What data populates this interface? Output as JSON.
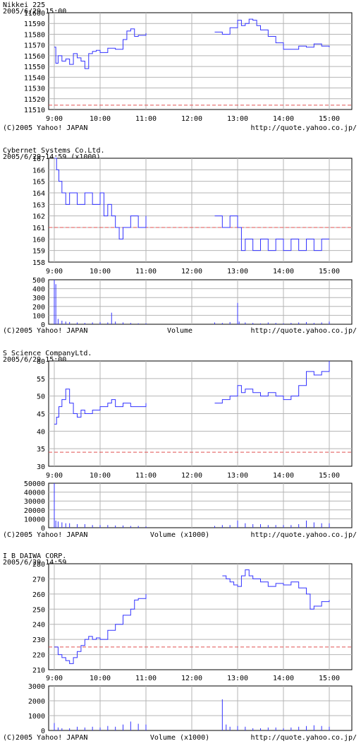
{
  "credit_text": "(C)2005 Yahoo! JAPAN",
  "credit_url": "http://quote.yahoo.co.jp/",
  "chart_data": [
    {
      "type": "line",
      "title": "Nikkei 225",
      "subtitle": "2005/6/29 15:00",
      "x_ticks": [
        "9:00",
        "10:00",
        "11:00",
        "12:00",
        "13:00",
        "14:00",
        "15:00"
      ],
      "y_ticks": [
        "11510",
        "11520",
        "11530",
        "11540",
        "11550",
        "11560",
        "11570",
        "11580",
        "11590",
        "11600"
      ],
      "ylim": [
        11510,
        11600
      ],
      "reference_line": 11514,
      "grid": true,
      "series": [
        {
          "values_x": [
            "9:00",
            "9:02",
            "9:05",
            "9:10",
            "9:15",
            "9:20",
            "9:25",
            "9:30",
            "9:35",
            "9:40",
            "9:45",
            "9:50",
            "9:55",
            "10:00",
            "10:10",
            "10:20",
            "10:30",
            "10:35",
            "10:40",
            "10:45",
            "10:50",
            "11:00"
          ],
          "values": [
            11568,
            11553,
            11560,
            11555,
            11557,
            11552,
            11562,
            11558,
            11555,
            11548,
            11562,
            11564,
            11565,
            11563,
            11567,
            11566,
            11575,
            11583,
            11585,
            11578,
            11579,
            11581
          ],
          "session2_x": [
            "12:30",
            "12:40",
            "12:50",
            "13:00",
            "13:05",
            "13:10",
            "13:15",
            "13:20",
            "13:25",
            "13:30",
            "13:40",
            "13:50",
            "14:00",
            "14:10",
            "14:20",
            "14:30",
            "14:40",
            "14:50",
            "15:00"
          ],
          "session2_values": [
            11582,
            11580,
            11586,
            11593,
            11588,
            11590,
            11594,
            11593,
            11588,
            11584,
            11578,
            11572,
            11566,
            11566,
            11569,
            11568,
            11571,
            11569,
            11568
          ]
        }
      ]
    },
    {
      "type": "line",
      "title": "Cybernet  Systems  Co.Ltd.",
      "subtitle": "2005/6/29 14:59  (x1000)",
      "x_ticks": [
        "9:00",
        "10:00",
        "11:00",
        "12:00",
        "13:00",
        "14:00",
        "15:00"
      ],
      "y_ticks": [
        "158",
        "159",
        "160",
        "161",
        "162",
        "163",
        "164",
        "165",
        "166",
        "167"
      ],
      "ylim": [
        158,
        167
      ],
      "reference_line": 161,
      "grid": true,
      "series": [
        {
          "values_x": [
            "9:00",
            "9:03",
            "9:06",
            "9:10",
            "9:15",
            "9:20",
            "9:30",
            "9:40",
            "9:50",
            "10:00",
            "10:05",
            "10:10",
            "10:15",
            "10:20",
            "10:25",
            "10:30",
            "10:40",
            "10:50",
            "11:00"
          ],
          "values": [
            167,
            166,
            165,
            164,
            163,
            164,
            163,
            164,
            163,
            164,
            162,
            163,
            162,
            161,
            160,
            161,
            162,
            161,
            162
          ],
          "session2_x": [
            "12:30",
            "12:40",
            "12:50",
            "13:00",
            "13:05",
            "13:10",
            "13:20",
            "13:30",
            "13:40",
            "13:50",
            "14:00",
            "14:10",
            "14:20",
            "14:30",
            "14:40",
            "14:50",
            "15:00"
          ],
          "session2_values": [
            162,
            161,
            162,
            161,
            159,
            160,
            159,
            160,
            159,
            160,
            159,
            160,
            159,
            160,
            159,
            160,
            160
          ]
        }
      ],
      "volume": {
        "label": "Volume",
        "y_ticks": [
          "0",
          "100",
          "200",
          "300",
          "400",
          "500"
        ],
        "ylim": [
          0,
          500
        ],
        "values_x": [
          "9:00",
          "9:02",
          "9:05",
          "9:10",
          "9:15",
          "9:20",
          "9:30",
          "9:40",
          "9:50",
          "10:00",
          "10:10",
          "10:15",
          "10:20",
          "10:30",
          "10:40",
          "10:50",
          "11:00",
          "12:30",
          "12:40",
          "12:50",
          "13:00",
          "13:02",
          "13:10",
          "13:20",
          "13:30",
          "13:40",
          "13:50",
          "14:00",
          "14:10",
          "14:20",
          "14:30",
          "14:40",
          "14:50",
          "15:00"
        ],
        "values": [
          500,
          450,
          60,
          40,
          30,
          25,
          20,
          15,
          20,
          25,
          20,
          130,
          30,
          20,
          15,
          10,
          10,
          20,
          15,
          25,
          240,
          30,
          20,
          15,
          10,
          20,
          15,
          10,
          15,
          20,
          25,
          15,
          20,
          30
        ]
      }
    },
    {
      "type": "line",
      "title": "S  Science  CompanyLtd.",
      "subtitle": "2005/6/29 15:00",
      "x_ticks": [
        "9:00",
        "10:00",
        "11:00",
        "12:00",
        "13:00",
        "14:00",
        "15:00"
      ],
      "y_ticks": [
        "30",
        "35",
        "40",
        "45",
        "50",
        "55",
        "60"
      ],
      "ylim": [
        30,
        60
      ],
      "reference_line": 34,
      "grid": true,
      "series": [
        {
          "values_x": [
            "9:00",
            "9:03",
            "9:06",
            "9:10",
            "9:15",
            "9:20",
            "9:25",
            "9:30",
            "9:35",
            "9:40",
            "9:50",
            "10:00",
            "10:10",
            "10:15",
            "10:20",
            "10:30",
            "10:40",
            "10:50",
            "11:00"
          ],
          "values": [
            42,
            44,
            47,
            49,
            52,
            48,
            45,
            44,
            46,
            45,
            46,
            47,
            48,
            49,
            47,
            48,
            47,
            47,
            48
          ],
          "session2_x": [
            "12:30",
            "12:40",
            "12:50",
            "13:00",
            "13:05",
            "13:10",
            "13:20",
            "13:30",
            "13:40",
            "13:50",
            "14:00",
            "14:10",
            "14:20",
            "14:30",
            "14:40",
            "14:50",
            "15:00"
          ],
          "session2_values": [
            48,
            49,
            50,
            53,
            51,
            52,
            51,
            50,
            51,
            50,
            49,
            50,
            53,
            57,
            56,
            57,
            60
          ]
        }
      ],
      "volume": {
        "label": "Volume  (x1000)",
        "y_ticks": [
          "0",
          "10000",
          "20000",
          "30000",
          "40000",
          "50000"
        ],
        "ylim": [
          0,
          50000
        ],
        "values_x": [
          "9:00",
          "9:02",
          "9:05",
          "9:10",
          "9:15",
          "9:20",
          "9:30",
          "9:40",
          "9:50",
          "10:00",
          "10:10",
          "10:20",
          "10:30",
          "10:40",
          "10:50",
          "11:00",
          "12:30",
          "12:40",
          "12:50",
          "13:00",
          "13:10",
          "13:20",
          "13:30",
          "13:40",
          "13:50",
          "14:00",
          "14:10",
          "14:20",
          "14:30",
          "14:40",
          "14:50",
          "15:00"
        ],
        "values": [
          50000,
          8000,
          7000,
          6000,
          5000,
          5000,
          4000,
          4000,
          3000,
          3000,
          3000,
          2500,
          2500,
          2000,
          2000,
          1500,
          2000,
          3000,
          3000,
          8000,
          5000,
          4000,
          4000,
          3000,
          3000,
          3000,
          3000,
          4000,
          8000,
          6000,
          5000,
          5000
        ]
      }
    },
    {
      "type": "line",
      "title": "I  B  DAIWA  CORP.",
      "subtitle": "2005/6/29 14:59",
      "x_ticks": [
        "9:00",
        "10:00",
        "11:00",
        "12:00",
        "13:00",
        "14:00",
        "15:00"
      ],
      "y_ticks": [
        "210",
        "220",
        "230",
        "240",
        "250",
        "260",
        "270",
        "280"
      ],
      "ylim": [
        210,
        280
      ],
      "reference_line": 225,
      "grid": true,
      "series": [
        {
          "values_x": [
            "9:00",
            "9:05",
            "9:10",
            "9:15",
            "9:20",
            "9:25",
            "9:30",
            "9:35",
            "9:40",
            "9:45",
            "9:50",
            "9:55",
            "10:00",
            "10:10",
            "10:20",
            "10:30",
            "10:40",
            "10:45",
            "10:50",
            "11:00"
          ],
          "values": [
            225,
            220,
            218,
            216,
            214,
            218,
            222,
            226,
            230,
            232,
            230,
            231,
            230,
            236,
            240,
            246,
            250,
            256,
            257,
            260
          ],
          "session2_x": [
            "12:40",
            "12:45",
            "12:50",
            "12:55",
            "13:00",
            "13:05",
            "13:10",
            "13:15",
            "13:20",
            "13:30",
            "13:40",
            "13:50",
            "14:00",
            "14:10",
            "14:20",
            "14:30",
            "14:35",
            "14:40",
            "14:50",
            "15:00"
          ],
          "session2_values": [
            272,
            270,
            268,
            266,
            265,
            272,
            276,
            272,
            270,
            268,
            265,
            267,
            266,
            268,
            264,
            260,
            250,
            252,
            255,
            256
          ]
        }
      ],
      "volume": {
        "label": "Volume  (x1000)",
        "y_ticks": [
          "0",
          "1000",
          "2000",
          "3000"
        ],
        "ylim": [
          0,
          3000
        ],
        "values_x": [
          "9:00",
          "9:05",
          "9:10",
          "9:20",
          "9:30",
          "9:40",
          "9:50",
          "10:00",
          "10:10",
          "10:20",
          "10:30",
          "10:40",
          "10:50",
          "11:00",
          "12:40",
          "12:45",
          "12:50",
          "13:00",
          "13:10",
          "13:20",
          "13:30",
          "13:40",
          "13:50",
          "14:00",
          "14:10",
          "14:20",
          "14:30",
          "14:40",
          "14:50",
          "15:00"
        ],
        "values": [
          500,
          200,
          150,
          150,
          250,
          200,
          250,
          200,
          300,
          250,
          400,
          600,
          450,
          400,
          2100,
          400,
          250,
          300,
          250,
          150,
          150,
          200,
          200,
          150,
          200,
          250,
          300,
          350,
          300,
          250
        ]
      }
    }
  ]
}
